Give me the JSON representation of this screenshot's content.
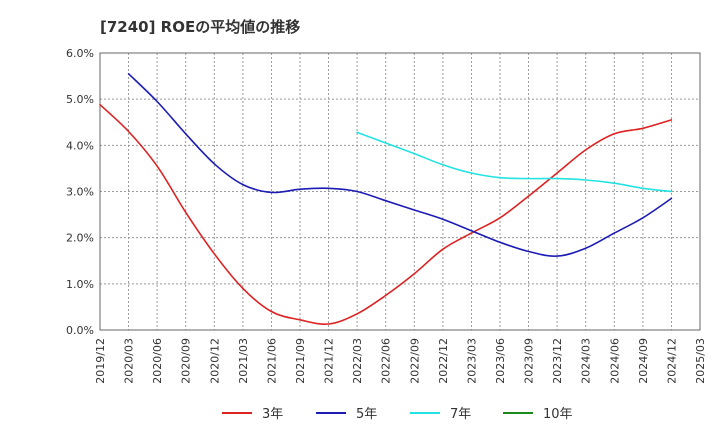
{
  "chart_data": {
    "type": "line",
    "title": "[7240]  ROEの平均値の推移",
    "xlabel": "",
    "ylabel": "",
    "ylim": [
      0,
      6
    ],
    "y_ticks": [
      "0.0%",
      "1.0%",
      "2.0%",
      "3.0%",
      "4.0%",
      "5.0%",
      "6.0%"
    ],
    "categories": [
      "2019/12",
      "2020/03",
      "2020/06",
      "2020/09",
      "2020/12",
      "2021/03",
      "2021/06",
      "2021/09",
      "2021/12",
      "2022/03",
      "2022/06",
      "2022/09",
      "2022/12",
      "2023/03",
      "2023/06",
      "2023/09",
      "2023/12",
      "2024/03",
      "2024/06",
      "2024/09",
      "2024/12",
      "2025/03"
    ],
    "series": [
      {
        "name": "3年",
        "color": "#dd2222",
        "values": [
          4.88,
          4.3,
          3.55,
          2.55,
          1.65,
          0.9,
          0.4,
          0.22,
          0.13,
          0.35,
          0.75,
          1.22,
          1.75,
          2.1,
          2.43,
          2.9,
          3.4,
          3.9,
          4.25,
          4.37,
          4.55,
          null
        ]
      },
      {
        "name": "5年",
        "color": "#1c1cb4",
        "values": [
          null,
          5.55,
          4.95,
          4.25,
          3.6,
          3.15,
          2.98,
          3.05,
          3.07,
          3.0,
          2.8,
          2.6,
          2.4,
          2.15,
          1.9,
          1.7,
          1.6,
          1.77,
          2.1,
          2.43,
          2.85,
          null
        ]
      },
      {
        "name": "7年",
        "color": "#22e2e2",
        "values": [
          null,
          null,
          null,
          null,
          null,
          null,
          null,
          null,
          null,
          4.28,
          4.05,
          3.82,
          3.58,
          3.4,
          3.3,
          3.28,
          3.28,
          3.25,
          3.18,
          3.07,
          3.0,
          null
        ]
      },
      {
        "name": "10年",
        "color": "#1a8a1a",
        "values": [
          null,
          null,
          null,
          null,
          null,
          null,
          null,
          null,
          null,
          null,
          null,
          null,
          null,
          null,
          null,
          null,
          null,
          null,
          null,
          null,
          null,
          null
        ]
      }
    ],
    "grid": true,
    "legend_position": "bottom"
  }
}
